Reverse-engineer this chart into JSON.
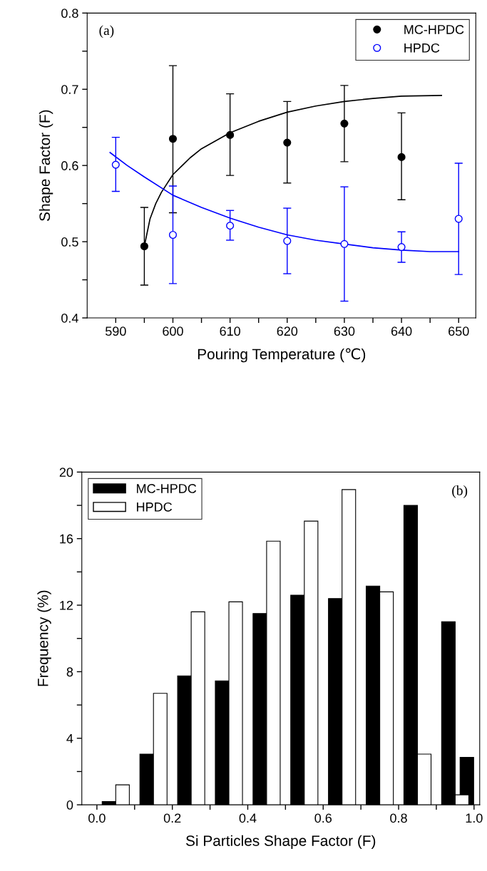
{
  "chart_data": [
    {
      "type": "scatter",
      "xlabel": "Pouring Temperature (℃)",
      "ylabel": "Shape Factor (F)",
      "annotations": [
        "(a)"
      ],
      "xlim": [
        585,
        653
      ],
      "ylim": [
        0.4,
        0.8
      ],
      "xticks": [
        590,
        {
          "value": 595,
          "label": null
        },
        600,
        {
          "value": 605,
          "label": null
        },
        610,
        {
          "value": 615,
          "label": null
        },
        620,
        {
          "value": 625,
          "label": null
        },
        630,
        {
          "value": 635,
          "label": null
        },
        640,
        {
          "value": 645,
          "label": null
        },
        650
      ],
      "yticks": [
        0.4,
        {
          "value": 0.45,
          "label": null
        },
        0.5,
        {
          "value": 0.55,
          "label": null
        },
        0.6,
        {
          "value": 0.65,
          "label": null
        },
        0.7,
        {
          "value": 0.75,
          "label": null
        },
        0.8
      ],
      "grid": false,
      "legend": "top right",
      "marker": "circle",
      "series": [
        {
          "name": "MC-HPDC",
          "color": "#000000",
          "x": [
            595,
            600,
            610,
            620,
            630,
            640
          ],
          "values": [
            0.494,
            0.635,
            0.64,
            0.63,
            0.655,
            0.611
          ],
          "errors": [
            [
              0.443,
              0.545
            ],
            [
              0.538,
              0.731
            ],
            [
              0.587,
              0.694
            ],
            [
              0.577,
              0.684
            ],
            [
              0.605,
              0.705
            ],
            [
              0.555,
              0.669
            ]
          ]
        },
        {
          "name": "HPDC",
          "color": "#0000ff",
          "x": [
            590,
            600,
            610,
            620,
            630,
            640,
            650
          ],
          "values": [
            0.601,
            0.509,
            0.521,
            0.501,
            0.497,
            0.493,
            0.53
          ],
          "errors": [
            [
              0.566,
              0.637
            ],
            [
              0.445,
              0.573
            ],
            [
              0.502,
              0.541
            ],
            [
              0.458,
              0.544
            ],
            [
              0.422,
              0.572
            ],
            [
              0.473,
              0.513
            ],
            [
              0.457,
              0.603
            ]
          ]
        },
        {
          "type": "line",
          "marker": "none",
          "color": "#000000",
          "x": [
            595,
            596,
            597,
            598,
            600,
            603,
            605,
            610,
            615,
            620,
            625,
            630,
            635,
            640,
            647
          ],
          "values": [
            0.494,
            0.53,
            0.55,
            0.565,
            0.588,
            0.61,
            0.622,
            0.643,
            0.658,
            0.67,
            0.678,
            0.684,
            0.688,
            0.691,
            0.692
          ]
        },
        {
          "type": "line",
          "marker": "none",
          "color": "#0000ff",
          "x": [
            589,
            592,
            595,
            600,
            605,
            610,
            615,
            620,
            625,
            630,
            635,
            640,
            645,
            650
          ],
          "values": [
            0.617,
            0.6,
            0.585,
            0.561,
            0.545,
            0.531,
            0.519,
            0.509,
            0.502,
            0.497,
            0.492,
            0.489,
            0.487,
            0.487
          ]
        }
      ]
    },
    {
      "type": "bar",
      "xlabel": "Si Particles Shape Factor (F)",
      "ylabel": "Frequency (%)",
      "annotations": [
        "(b)"
      ],
      "xlim": [
        -0.04,
        1.015
      ],
      "ylim": [
        0,
        20
      ],
      "xticks": [
        {
          "value": 0,
          "label": "0.0"
        },
        {
          "value": 0.1,
          "label": null
        },
        0.2,
        {
          "value": 0.3,
          "label": null
        },
        0.4,
        {
          "value": 0.5,
          "label": null
        },
        0.6,
        {
          "value": 0.7,
          "label": null
        },
        0.8,
        {
          "value": 0.9,
          "label": null
        },
        {
          "value": 1.0,
          "label": "1.0"
        }
      ],
      "yticks": [
        0,
        {
          "value": 2,
          "label": null
        },
        4,
        {
          "value": 6,
          "label": null
        },
        8,
        {
          "value": 10,
          "label": null
        },
        12,
        {
          "value": 14,
          "label": null
        },
        16,
        {
          "value": 18,
          "label": null
        },
        20
      ],
      "grid": false,
      "legend": "top left",
      "series": [
        {
          "name": "MC-HPDC",
          "color": "#000000",
          "x": [
            0.032,
            0.132,
            0.232,
            0.332,
            0.432,
            0.532,
            0.632,
            0.732,
            0.832,
            0.932,
            0.981
          ],
          "values": [
            0.2,
            3.05,
            7.75,
            7.45,
            11.5,
            12.6,
            12.4,
            13.15,
            18.0,
            11.0,
            2.85
          ]
        },
        {
          "name": "HPDC",
          "color": "#ffffff",
          "x": [
            0.068,
            0.168,
            0.268,
            0.368,
            0.468,
            0.568,
            0.668,
            0.768,
            0.868,
            0.968
          ],
          "values": [
            1.2,
            6.7,
            11.6,
            12.2,
            15.85,
            17.05,
            18.95,
            12.8,
            3.05,
            0.6
          ]
        }
      ]
    }
  ]
}
